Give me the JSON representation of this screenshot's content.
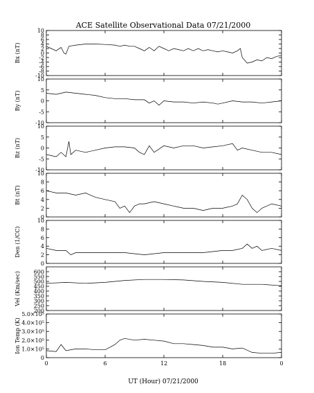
{
  "chart_data": {
    "type": "line",
    "title": "ACE Satellite Observational Data   07/21/2000",
    "xlabel": "UT (Hour)   07/21/2000",
    "x_tick_labels": [
      "0",
      "6",
      "12",
      "18",
      "0"
    ],
    "xlim": [
      0,
      24
    ],
    "panels": [
      {
        "ylabel": "Bx (nT)",
        "ylim": [
          -10,
          10
        ],
        "yticks": [
          -10,
          -8,
          -6,
          -4,
          -2,
          0,
          2,
          4,
          6,
          8,
          10
        ],
        "ytick_labels": [
          "-10",
          "-8",
          "-6",
          "-4",
          "-2",
          "0",
          "2",
          "4",
          "6",
          "8",
          "10"
        ],
        "x": [
          0,
          0.5,
          1,
          1.5,
          1.8,
          2,
          2.3,
          3,
          4,
          5,
          6,
          7,
          7.5,
          8,
          8.5,
          9,
          9.5,
          10,
          10.5,
          11,
          11.5,
          12,
          12.5,
          13,
          13.5,
          14,
          14.5,
          15,
          15.5,
          16,
          16.5,
          17,
          17.5,
          18,
          18.5,
          19,
          19.5,
          19.8,
          20,
          20.5,
          21,
          21.5,
          22,
          22.5,
          23,
          23.5,
          24
        ],
        "y": [
          3,
          2,
          1,
          2.5,
          0,
          -0.5,
          3,
          3.5,
          4,
          4,
          3.8,
          3.5,
          3,
          3.5,
          3,
          3,
          2,
          1,
          2.5,
          1,
          3,
          2,
          1,
          2,
          1.5,
          1,
          2,
          1,
          2,
          1,
          1.5,
          1,
          0.5,
          1,
          0.5,
          0,
          1,
          2,
          -2,
          -4.5,
          -4,
          -3,
          -3.5,
          -2,
          -2.5,
          -1.5,
          -1
        ]
      },
      {
        "ylabel": "By (nT)",
        "ylim": [
          -10,
          10
        ],
        "yticks": [
          -10,
          -5,
          0,
          5,
          10
        ],
        "ytick_labels": [
          "-10",
          "-5",
          "0",
          "5",
          "10"
        ],
        "x": [
          0,
          1,
          2,
          3,
          4,
          5,
          6,
          7,
          8,
          9,
          10,
          10.5,
          11,
          11.5,
          12,
          13,
          14,
          15,
          16,
          17,
          17.5,
          18,
          19,
          20,
          21,
          22,
          23,
          24
        ],
        "y": [
          3.5,
          3,
          4,
          3.5,
          3,
          2.5,
          1.5,
          1,
          1,
          0.5,
          0.5,
          -1,
          0,
          -2,
          0,
          -0.5,
          -0.5,
          -1,
          -0.5,
          -1,
          -1.5,
          -1,
          0,
          -0.5,
          -0.5,
          -1,
          -0.5,
          0
        ]
      },
      {
        "ylabel": "Bz (nT)",
        "ylim": [
          -10,
          10
        ],
        "yticks": [
          -10,
          -5,
          0,
          5,
          10
        ],
        "ytick_labels": [
          "-10",
          "-5",
          "0",
          "5",
          "10"
        ],
        "x": [
          0,
          1,
          1.5,
          2,
          2.3,
          2.5,
          3,
          4,
          5,
          6,
          7,
          8,
          9,
          9.5,
          10,
          10.5,
          11,
          12,
          13,
          14,
          15,
          16,
          17,
          18,
          19,
          19.5,
          20,
          21,
          22,
          23,
          24
        ],
        "y": [
          -3,
          -4,
          -2,
          -4,
          3,
          -3,
          -1,
          -2,
          -1,
          0,
          0.5,
          0.5,
          0,
          -2,
          -3,
          1,
          -2,
          1,
          0,
          1,
          1,
          0,
          0.5,
          1,
          2,
          -1,
          0,
          -1,
          -2,
          -2,
          -3
        ]
      },
      {
        "ylabel": "Bt (nT)",
        "ylim": [
          0,
          10
        ],
        "yticks": [
          0,
          2,
          4,
          6,
          8,
          10
        ],
        "ytick_labels": [
          "0",
          "2",
          "4",
          "6",
          "8",
          "10"
        ],
        "x": [
          0,
          1,
          2,
          3,
          4,
          5,
          6,
          7,
          7.5,
          8,
          8.5,
          9,
          9.5,
          10,
          11,
          12,
          13,
          14,
          15,
          16,
          17,
          18,
          19,
          19.5,
          20,
          20.5,
          21,
          21.5,
          22,
          23,
          24
        ],
        "y": [
          6,
          5.5,
          5.5,
          5,
          5.5,
          4.5,
          4,
          3.5,
          2,
          2.5,
          1,
          2.5,
          3,
          3,
          3.5,
          3,
          2.5,
          2,
          2,
          1.5,
          2,
          2,
          2.5,
          3,
          5,
          4,
          2,
          1,
          2,
          3,
          2.5
        ]
      },
      {
        "ylabel": "Den (1/CC)",
        "ylim": [
          0,
          10
        ],
        "yticks": [
          0,
          2,
          4,
          6,
          8,
          10
        ],
        "ytick_labels": [
          "0",
          "2",
          "4",
          "6",
          "8",
          "10"
        ],
        "x": [
          0,
          1,
          2,
          2.5,
          3,
          4,
          5,
          6,
          8,
          10,
          12,
          14,
          16,
          18,
          19,
          20,
          20.5,
          21,
          21.5,
          22,
          23,
          24
        ],
        "y": [
          3.5,
          3,
          3,
          2,
          2.5,
          2.5,
          2.5,
          2.5,
          2.5,
          2,
          2.5,
          2.5,
          2.5,
          3,
          3,
          3.5,
          4.5,
          3.5,
          4,
          3,
          3.5,
          3
        ]
      },
      {
        "ylabel": "Vel (Km/sec)",
        "ylim": [
          200,
          650
        ],
        "yticks": [
          200,
          250,
          300,
          350,
          400,
          450,
          500,
          550,
          600
        ],
        "ytick_labels": [
          "200",
          "250",
          "300",
          "350",
          "400",
          "450",
          "500",
          "550",
          "600"
        ],
        "x": [
          0,
          2,
          4,
          6,
          8,
          10,
          12,
          14,
          16,
          18,
          20,
          22,
          24
        ],
        "y": [
          480,
          490,
          480,
          490,
          510,
          520,
          520,
          515,
          500,
          490,
          470,
          470,
          455
        ]
      },
      {
        "ylabel": "Ion Temp (K)",
        "ylim": [
          0,
          500000
        ],
        "yticks": [
          0,
          100000,
          200000,
          300000,
          400000,
          500000
        ],
        "ytick_labels": [
          "0",
          "1.0×10⁵",
          "2.0×10⁵",
          "3.0×10⁵",
          "4.0×10⁵",
          "5.0×10⁵"
        ],
        "x": [
          0,
          1,
          1.5,
          2,
          3,
          4,
          5,
          6,
          7,
          7.5,
          8,
          9,
          10,
          11,
          12,
          13,
          14,
          15,
          16,
          17,
          18,
          19,
          20,
          21,
          22,
          23,
          24
        ],
        "y": [
          80000,
          70000,
          150000,
          80000,
          100000,
          100000,
          90000,
          90000,
          150000,
          200000,
          220000,
          200000,
          210000,
          200000,
          190000,
          160000,
          160000,
          150000,
          140000,
          120000,
          120000,
          100000,
          110000,
          60000,
          50000,
          50000,
          60000
        ]
      }
    ]
  }
}
